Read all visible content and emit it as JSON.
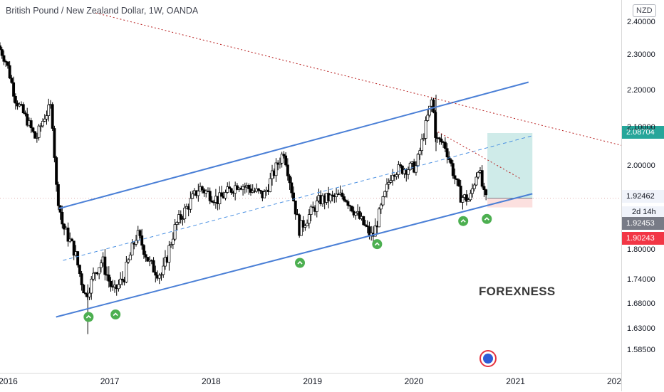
{
  "header": {
    "title": "British Pound / New Zealand Dollar, 1W, OANDA",
    "currency": "NZD"
  },
  "watermark": {
    "brand": "FOREXNESS"
  },
  "price_labels": {
    "take_profit": "2.08704",
    "last_price": "1.92462",
    "countdown": "2d 14h",
    "entry": "1.92453",
    "stop_loss": "1.90243"
  },
  "colors": {
    "bull_candle": "#ffffff",
    "bear_candle": "#000000",
    "channel": "#4a7fd6",
    "midline": "#4a90e2",
    "resistance": "#b71c1c",
    "target_zone": "#26a69a",
    "stop_zone": "#ef5350",
    "marker": "#4caf50",
    "tp_label": "#26a69a",
    "entry_label": "#787b86",
    "sl_label": "#f23645"
  },
  "chart_data": {
    "type": "candlestick",
    "symbol": "GBPNZD",
    "interval": "1W",
    "source": "OANDA",
    "ylim": [
      1.56,
      2.43
    ],
    "y_ticks": [
      "2.40000",
      "2.30000",
      "2.20000",
      "2.10000",
      "2.00000",
      "1.80000",
      "1.74000",
      "1.68000",
      "1.63000",
      "1.58500"
    ],
    "x_ticks": [
      "2016",
      "2017",
      "2018",
      "2019",
      "2020",
      "2021",
      "202"
    ],
    "x_range": [
      "2015-12-01",
      "2022-01-15"
    ],
    "ohlc_anchors": [
      {
        "date": "2015-12-01",
        "price": 2.33
      },
      {
        "date": "2016-01-01",
        "price": 2.28
      },
      {
        "date": "2016-02-01",
        "price": 2.18
      },
      {
        "date": "2016-03-15",
        "price": 2.12
      },
      {
        "date": "2016-04-15",
        "price": 2.07
      },
      {
        "date": "2016-05-15",
        "price": 2.13
      },
      {
        "date": "2016-06-10",
        "price": 2.16
      },
      {
        "date": "2016-06-28",
        "price": 1.95
      },
      {
        "date": "2016-07-20",
        "price": 1.86
      },
      {
        "date": "2016-09-01",
        "price": 1.8
      },
      {
        "date": "2016-10-12",
        "price": 1.7
      },
      {
        "date": "2016-11-15",
        "price": 1.76
      },
      {
        "date": "2016-12-10",
        "price": 1.78
      },
      {
        "date": "2017-01-20",
        "price": 1.71
      },
      {
        "date": "2017-03-01",
        "price": 1.75
      },
      {
        "date": "2017-04-15",
        "price": 1.84
      },
      {
        "date": "2017-06-01",
        "price": 1.77
      },
      {
        "date": "2017-07-15",
        "price": 1.75
      },
      {
        "date": "2017-09-01",
        "price": 1.86
      },
      {
        "date": "2017-11-25",
        "price": 1.95
      },
      {
        "date": "2018-02-01",
        "price": 1.92
      },
      {
        "date": "2018-04-15",
        "price": 1.96
      },
      {
        "date": "2018-07-15",
        "price": 1.93
      },
      {
        "date": "2018-09-25",
        "price": 2.04
      },
      {
        "date": "2018-11-20",
        "price": 1.85
      },
      {
        "date": "2019-02-01",
        "price": 1.92
      },
      {
        "date": "2019-05-01",
        "price": 1.93
      },
      {
        "date": "2019-08-10",
        "price": 1.83
      },
      {
        "date": "2019-10-20",
        "price": 1.99
      },
      {
        "date": "2020-01-15",
        "price": 2.0
      },
      {
        "date": "2020-03-12",
        "price": 2.18
      },
      {
        "date": "2020-03-26",
        "price": 2.07
      },
      {
        "date": "2020-04-25",
        "price": 2.06
      },
      {
        "date": "2020-06-20",
        "price": 1.93
      },
      {
        "date": "2020-07-25",
        "price": 1.92
      },
      {
        "date": "2020-08-25",
        "price": 2.0
      },
      {
        "date": "2020-09-18",
        "price": 1.92
      }
    ],
    "channel_upper": [
      {
        "date": "2016-07-01",
        "price": 1.9
      },
      {
        "date": "2021-02-15",
        "price": 2.225
      }
    ],
    "channel_lower": [
      {
        "date": "2016-06-20",
        "price": 1.655
      },
      {
        "date": "2021-03-01",
        "price": 1.935
      }
    ],
    "channel_mid": [
      {
        "date": "2016-07-15",
        "price": 1.78
      },
      {
        "date": "2021-03-01",
        "price": 2.08
      }
    ],
    "resistance_line": [
      {
        "date": "2016-11-10",
        "price": 2.43
      },
      {
        "date": "2022-01-15",
        "price": 2.055
      }
    ],
    "local_trend_line": [
      {
        "date": "2020-03-26",
        "price": 2.09
      },
      {
        "date": "2021-01-20",
        "price": 1.97
      }
    ],
    "target_zone": {
      "from": "2020-09-20",
      "to": "2021-03-01",
      "low": 1.92453,
      "high": 2.08704
    },
    "stop_zone": {
      "from": "2020-09-20",
      "to": "2021-03-01",
      "low": 1.90243,
      "high": 1.92453
    },
    "markers": [
      {
        "date": "2016-10-15",
        "price": 1.655
      },
      {
        "date": "2017-01-20",
        "price": 1.66
      },
      {
        "date": "2018-11-15",
        "price": 1.775
      },
      {
        "date": "2019-08-20",
        "price": 1.815
      },
      {
        "date": "2020-06-25",
        "price": 1.87
      },
      {
        "date": "2020-09-18",
        "price": 1.875
      }
    ]
  }
}
